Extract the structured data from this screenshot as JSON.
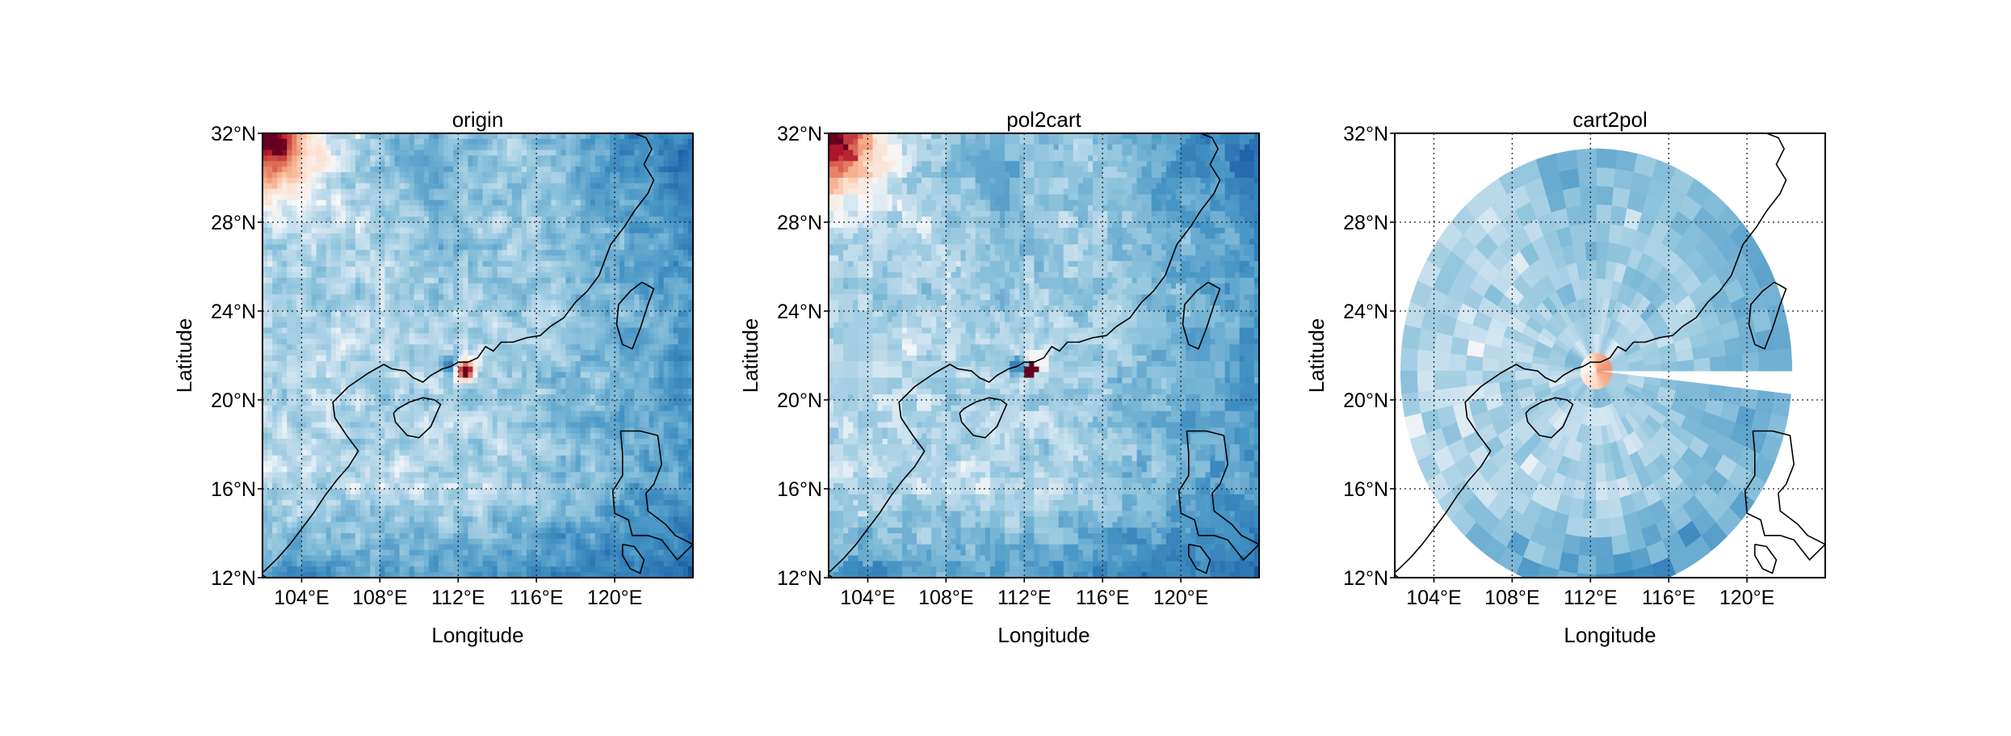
{
  "chart_data": [
    {
      "type": "heatmap",
      "panel": "origin",
      "title": "origin",
      "xlabel": "Longitude",
      "ylabel": "Latitude",
      "xlim": [
        102,
        124
      ],
      "ylim": [
        12,
        32
      ],
      "x_ticks": [
        104,
        108,
        112,
        116,
        120
      ],
      "y_ticks": [
        12,
        16,
        20,
        24,
        28,
        32
      ],
      "x_tick_labels": [
        "104°E",
        "108°E",
        "112°E",
        "116°E",
        "120°E"
      ],
      "y_tick_labels": [
        "12°N",
        "16°N",
        "20°N",
        "24°N",
        "28°N",
        "32°N"
      ],
      "grid": true,
      "colormap": "RdBu_r",
      "field": "regular_latlon_grid",
      "grid_resolution_deg": 0.25,
      "features": [
        {
          "name": "strong_positive_corner",
          "lon": 102.6,
          "lat": 31.2
        },
        {
          "name": "typhoon_core",
          "lon": 112.3,
          "lat": 21.3
        },
        {
          "name": "negative_belt",
          "lon": 118.5,
          "lat": 15.5
        }
      ]
    },
    {
      "type": "heatmap",
      "panel": "pol2cart",
      "title": "pol2cart",
      "xlabel": "Longitude",
      "ylabel": "Latitude",
      "xlim": [
        102,
        124
      ],
      "ylim": [
        12,
        32
      ],
      "x_ticks": [
        104,
        108,
        112,
        116,
        120
      ],
      "y_ticks": [
        12,
        16,
        20,
        24,
        28,
        32
      ],
      "x_tick_labels": [
        "104°E",
        "108°E",
        "112°E",
        "116°E",
        "120°E"
      ],
      "y_tick_labels": [
        "12°N",
        "16°N",
        "20°N",
        "24°N",
        "28°N",
        "32°N"
      ],
      "grid": true,
      "colormap": "RdBu_r",
      "field": "polar_to_cartesian_regridded"
    },
    {
      "type": "heatmap",
      "panel": "cart2pol",
      "title": "cart2pol",
      "xlabel": "Longitude",
      "ylabel": "Latitude",
      "xlim": [
        102,
        124
      ],
      "ylim": [
        12,
        32
      ],
      "x_ticks": [
        104,
        108,
        112,
        116,
        120
      ],
      "y_ticks": [
        12,
        16,
        20,
        24,
        28,
        32
      ],
      "x_tick_labels": [
        "104°E",
        "108°E",
        "112°E",
        "116°E",
        "120°E"
      ],
      "y_tick_labels": [
        "12°N",
        "16°N",
        "20°N",
        "24°N",
        "28°N",
        "32°N"
      ],
      "grid": true,
      "colormap": "RdBu_r",
      "field": "polar_grid",
      "polar_center": {
        "lon": 112.3,
        "lat": 21.3
      },
      "polar_radius_deg": 10,
      "missing_wedge_deg": [
        -8,
        0
      ]
    }
  ],
  "map": {
    "coastline_color": "#000000",
    "coast_mainland": [
      [
        101.5,
        12.0
      ],
      [
        102.1,
        12.3
      ],
      [
        102.8,
        12.9
      ],
      [
        103.4,
        13.5
      ],
      [
        104.0,
        14.2
      ],
      [
        104.6,
        14.9
      ],
      [
        105.2,
        15.7
      ],
      [
        105.8,
        16.4
      ],
      [
        106.4,
        17.0
      ],
      [
        106.9,
        17.7
      ],
      [
        106.3,
        18.4
      ],
      [
        105.7,
        19.2
      ],
      [
        105.6,
        19.9
      ],
      [
        106.4,
        20.6
      ],
      [
        107.4,
        21.2
      ],
      [
        108.2,
        21.6
      ],
      [
        108.6,
        21.4
      ],
      [
        109.3,
        21.3
      ],
      [
        109.7,
        21.0
      ],
      [
        110.2,
        20.8
      ],
      [
        110.6,
        21.1
      ],
      [
        111.2,
        21.4
      ],
      [
        111.6,
        21.5
      ],
      [
        112.0,
        21.7
      ],
      [
        112.5,
        21.7
      ],
      [
        113.0,
        21.9
      ],
      [
        113.4,
        22.4
      ],
      [
        113.8,
        22.2
      ],
      [
        114.2,
        22.6
      ],
      [
        114.8,
        22.6
      ],
      [
        115.5,
        22.8
      ],
      [
        116.2,
        22.9
      ],
      [
        116.7,
        23.3
      ],
      [
        117.4,
        23.7
      ],
      [
        118.0,
        24.4
      ],
      [
        118.6,
        24.9
      ],
      [
        119.2,
        25.6
      ],
      [
        119.5,
        26.3
      ],
      [
        119.8,
        27.0
      ],
      [
        120.5,
        27.8
      ],
      [
        121.0,
        28.5
      ],
      [
        121.7,
        29.3
      ],
      [
        122.0,
        29.9
      ],
      [
        121.5,
        30.6
      ],
      [
        121.9,
        31.3
      ],
      [
        121.6,
        31.8
      ],
      [
        121.0,
        32.0
      ]
    ],
    "coast_hainan": [
      [
        108.7,
        19.4
      ],
      [
        108.8,
        19.0
      ],
      [
        109.4,
        18.4
      ],
      [
        110.0,
        18.3
      ],
      [
        110.6,
        18.8
      ],
      [
        111.1,
        19.8
      ],
      [
        110.8,
        20.0
      ],
      [
        110.2,
        20.1
      ],
      [
        109.5,
        19.9
      ],
      [
        108.9,
        19.6
      ],
      [
        108.7,
        19.4
      ]
    ],
    "coast_taiwan": [
      [
        121.4,
        25.3
      ],
      [
        122.0,
        25.0
      ],
      [
        121.7,
        24.3
      ],
      [
        121.3,
        23.2
      ],
      [
        120.9,
        22.3
      ],
      [
        120.4,
        22.5
      ],
      [
        120.1,
        23.4
      ],
      [
        120.2,
        24.3
      ],
      [
        120.8,
        24.9
      ],
      [
        121.4,
        25.3
      ]
    ],
    "coast_luzon": [
      [
        120.3,
        18.6
      ],
      [
        121.3,
        18.6
      ],
      [
        122.2,
        18.4
      ],
      [
        122.4,
        17.1
      ],
      [
        122.0,
        16.2
      ],
      [
        121.6,
        15.8
      ],
      [
        121.7,
        15.0
      ],
      [
        122.6,
        14.4
      ],
      [
        123.1,
        13.9
      ],
      [
        124.0,
        13.5
      ],
      [
        123.2,
        12.8
      ],
      [
        122.4,
        13.7
      ],
      [
        121.7,
        13.9
      ],
      [
        120.9,
        13.9
      ],
      [
        120.7,
        14.6
      ],
      [
        120.0,
        14.9
      ],
      [
        119.9,
        15.9
      ],
      [
        120.4,
        16.6
      ],
      [
        120.4,
        17.6
      ],
      [
        120.3,
        18.6
      ]
    ],
    "coast_mindoro": [
      [
        120.4,
        13.5
      ],
      [
        121.0,
        13.4
      ],
      [
        121.5,
        12.8
      ],
      [
        121.3,
        12.2
      ],
      [
        120.8,
        12.4
      ],
      [
        120.4,
        13.0
      ],
      [
        120.4,
        13.5
      ]
    ],
    "coast_vn_corner": [
      [
        101.5,
        12.45
      ],
      [
        102.2,
        12.0
      ]
    ]
  },
  "colors": {
    "colormap_low": "#053061",
    "colormap_mid": "#f7f7f7",
    "colormap_high": "#67001f"
  }
}
